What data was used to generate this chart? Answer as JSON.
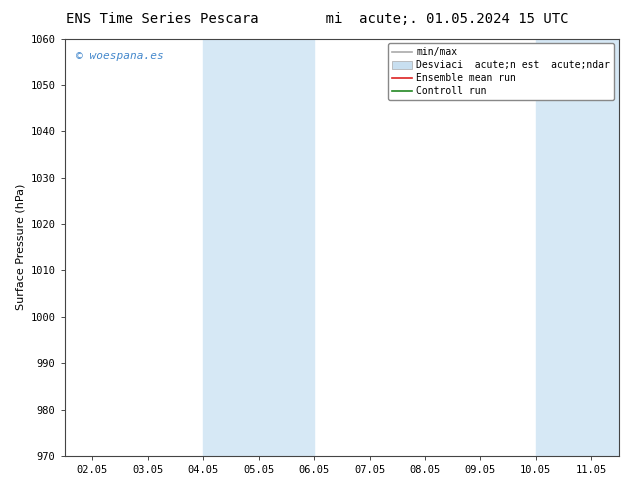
{
  "title_left": "ENS Time Series Pescara",
  "title_right": "mi  acute;. 01.05.2024 15 UTC",
  "ylabel": "Surface Pressure (hPa)",
  "ylim": [
    970,
    1060
  ],
  "yticks": [
    970,
    980,
    990,
    1000,
    1010,
    1020,
    1030,
    1040,
    1050,
    1060
  ],
  "x_labels": [
    "02.05",
    "03.05",
    "04.05",
    "05.05",
    "06.05",
    "07.05",
    "08.05",
    "09.05",
    "10.05",
    "11.05"
  ],
  "x_positions": [
    0,
    1,
    2,
    3,
    4,
    5,
    6,
    7,
    8,
    9
  ],
  "shaded_regions": [
    {
      "xmin": 2.0,
      "xmax": 4.0,
      "color": "#d6e8f5"
    },
    {
      "xmin": 8.0,
      "xmax": 9.5,
      "color": "#d6e8f5"
    }
  ],
  "bg_color": "#ffffff",
  "plot_bg_color": "#ffffff",
  "watermark_text": "© woespana.es",
  "watermark_color": "#4488cc",
  "legend_line1": "min/max",
  "legend_line2": "Desviaci  acute;n est  acute;ndar",
  "legend_line3": "Ensemble mean run",
  "legend_line4": "Controll run",
  "legend_color1": "#aaaaaa",
  "legend_color2": "#c8dff0",
  "legend_color3": "#dd2222",
  "legend_color4": "#228822",
  "title_fontsize": 10,
  "tick_fontsize": 7.5,
  "ylabel_fontsize": 8,
  "legend_fontsize": 7
}
